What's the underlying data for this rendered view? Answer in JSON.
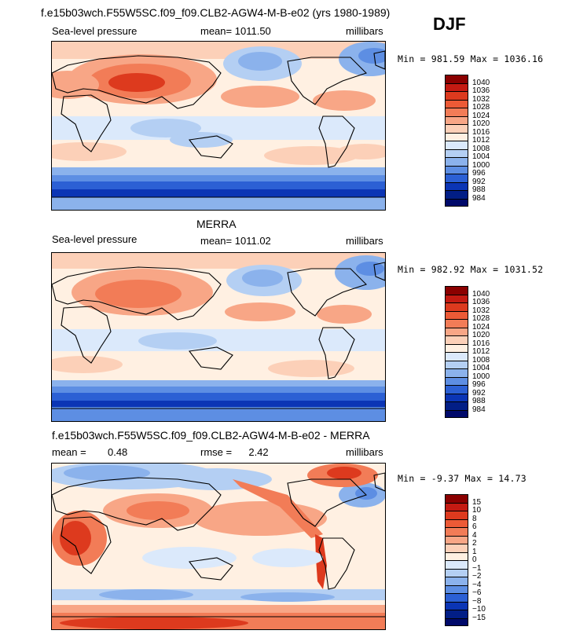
{
  "figure": {
    "case_title": "f.e15b03wch.F55W5SC.f09_f09.CLB2-AGW4-M-B-e02 (yrs 1980-1989)",
    "season": "DJF"
  },
  "panels": [
    {
      "id": "model",
      "header": "",
      "variable": "Sea-level pressure",
      "mean_label": "mean=",
      "mean_value": "1011.50",
      "units": "millibars",
      "min_max": "Min = 981.59 Max = 1036.16",
      "levels": [
        "1040",
        "1036",
        "1032",
        "1028",
        "1024",
        "1020",
        "1016",
        "1012",
        "1008",
        "1004",
        "1000",
        "996",
        "992",
        "988",
        "984"
      ],
      "colors": [
        "#8b0000",
        "#c41a12",
        "#dd3a1e",
        "#ec5a36",
        "#f27c57",
        "#f8a686",
        "#fcd0b8",
        "#fff0e2",
        "#dbe9fb",
        "#b4cff3",
        "#8bb2ec",
        "#5d8ee3",
        "#2c60d4",
        "#0b35b5",
        "#021e86",
        "#00096a"
      ]
    },
    {
      "id": "obs",
      "header": "MERRA",
      "variable": "Sea-level pressure",
      "mean_label": "mean=",
      "mean_value": "1011.02",
      "units": "millibars",
      "min_max": "Min = 982.92 Max = 1031.52",
      "levels": [
        "1040",
        "1036",
        "1032",
        "1028",
        "1024",
        "1020",
        "1016",
        "1012",
        "1008",
        "1004",
        "1000",
        "996",
        "992",
        "988",
        "984"
      ],
      "colors": [
        "#8b0000",
        "#c41a12",
        "#dd3a1e",
        "#ec5a36",
        "#f27c57",
        "#f8a686",
        "#fcd0b8",
        "#fff0e2",
        "#dbe9fb",
        "#b4cff3",
        "#8bb2ec",
        "#5d8ee3",
        "#2c60d4",
        "#0b35b5",
        "#021e86",
        "#00096a"
      ]
    },
    {
      "id": "diff",
      "header": "f.e15b03wch.F55W5SC.f09_f09.CLB2-AGW4-M-B-e02 - MERRA",
      "mean_label": "mean =",
      "mean_value": "0.48",
      "rmse_label": "rmse =",
      "rmse_value": "2.42",
      "units": "millibars",
      "min_max": "Min =  -9.37 Max =   14.73",
      "levels": [
        "15",
        "10",
        "8",
        "6",
        "4",
        "2",
        "1",
        "0",
        "−1",
        "−2",
        "−4",
        "−6",
        "−8",
        "−10",
        "−15"
      ],
      "colors": [
        "#8b0000",
        "#c41a12",
        "#dd3a1e",
        "#ec5a36",
        "#f27c57",
        "#f8a686",
        "#fcd0b8",
        "#fff0e2",
        "#dbe9fb",
        "#b4cff3",
        "#8bb2ec",
        "#5d8ee3",
        "#2c60d4",
        "#0b35b5",
        "#021e86",
        "#00096a"
      ]
    }
  ]
}
